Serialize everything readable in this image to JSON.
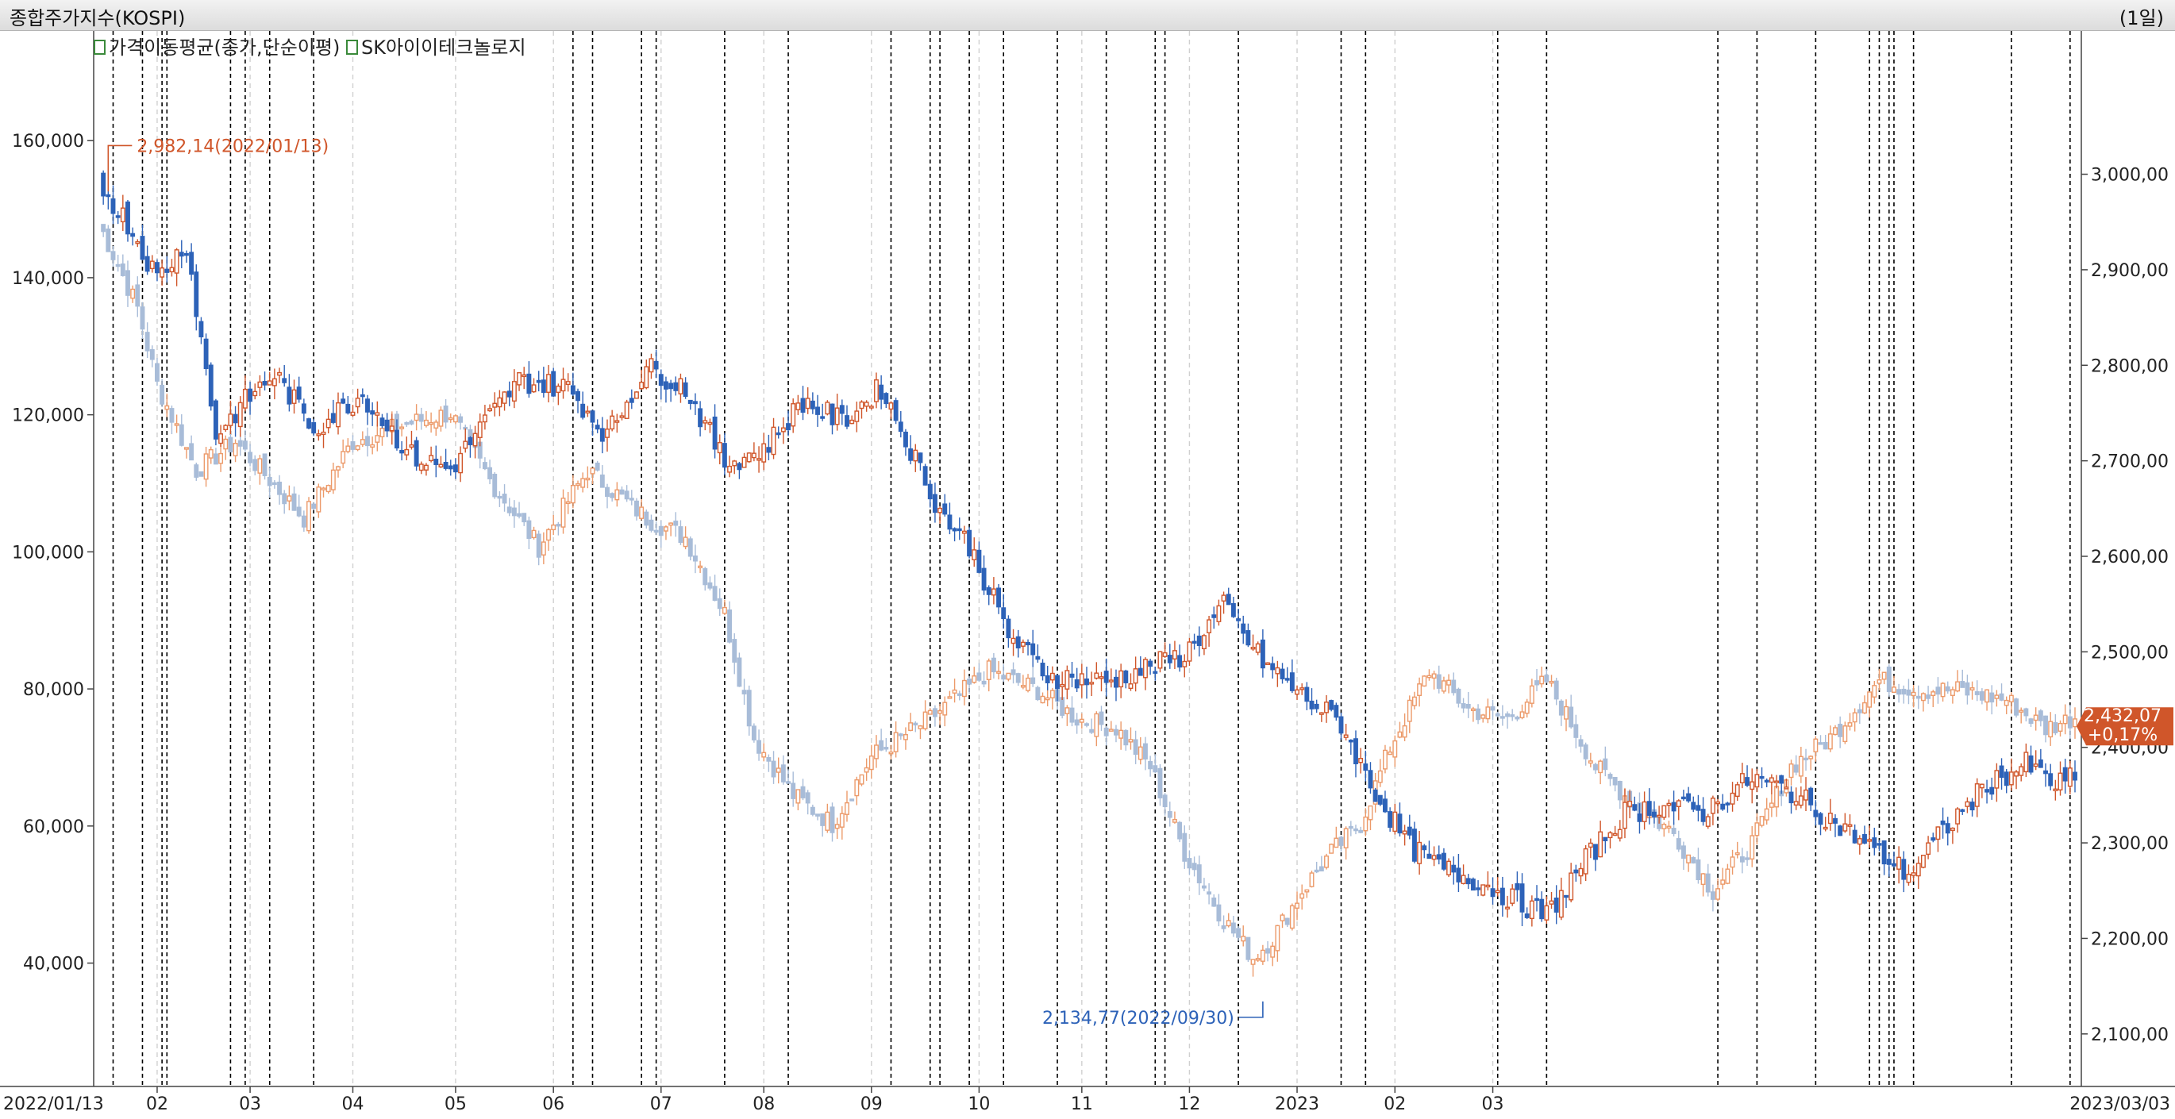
{
  "header": {
    "title": "종합주가지수(KOSPI)",
    "period": "(1일)"
  },
  "legend": {
    "series_1": "가격이동평균(종가,단순이평)",
    "series_2": "SK아이이테크놀로지"
  },
  "colors": {
    "up": "#d0562a",
    "down": "#2d62b8",
    "kospi_up": "#ec9a6a",
    "kospi_down": "#a8bcd8",
    "grid": "#d0d0d0",
    "event_line": "#000000",
    "axis_text": "#222222",
    "high_annotation": "#d0562a",
    "low_annotation": "#2d62b8",
    "last_price_bg": "#d0562a"
  },
  "chart_data": {
    "type": "candlestick",
    "x_start_label": "2022/01/13",
    "x_end_label": "2023/03/03",
    "x_tick_labels": [
      "02",
      "03",
      "04",
      "05",
      "06",
      "07",
      "08",
      "09",
      "10",
      "11",
      "12",
      "2023",
      "02",
      "03"
    ],
    "left_axis": {
      "ticks": [
        "40,000",
        "60,000",
        "80,000",
        "100,000",
        "120,000",
        "140,000",
        "160,000"
      ],
      "ylim": [
        22000,
        176000
      ]
    },
    "right_axis": {
      "ticks": [
        "2,100,00",
        "2,200,00",
        "2,300,00",
        "2,400,00",
        "2,500,00",
        "2,600,00",
        "2,700,00",
        "2,800,00",
        "2,900,00",
        "3,000,00"
      ],
      "ylim": [
        2045,
        3150
      ]
    },
    "annotations": {
      "high": "2,982,14(2022/01/13)",
      "low": "2,134,77(2022/09/30)",
      "last_price": "2,432,07",
      "last_change": "+0,17%"
    },
    "series": [
      {
        "name": "종합주가지수(KOSPI)",
        "axis": "right",
        "close_anchors": [
          [
            0,
            2950
          ],
          [
            8,
            2860
          ],
          [
            12,
            2780
          ],
          [
            20,
            2690
          ],
          [
            28,
            2720
          ],
          [
            35,
            2680
          ],
          [
            42,
            2640
          ],
          [
            52,
            2720
          ],
          [
            64,
            2740
          ],
          [
            72,
            2750
          ],
          [
            80,
            2680
          ],
          [
            90,
            2610
          ],
          [
            100,
            2690
          ],
          [
            112,
            2640
          ],
          [
            120,
            2620
          ],
          [
            128,
            2540
          ],
          [
            134,
            2410
          ],
          [
            142,
            2350
          ],
          [
            150,
            2320
          ],
          [
            158,
            2390
          ],
          [
            170,
            2430
          ],
          [
            182,
            2480
          ],
          [
            192,
            2460
          ],
          [
            200,
            2430
          ],
          [
            208,
            2420
          ],
          [
            215,
            2380
          ],
          [
            222,
            2290
          ],
          [
            230,
            2220
          ],
          [
            236,
            2180
          ],
          [
            240,
            2200
          ],
          [
            246,
            2250
          ],
          [
            252,
            2290
          ],
          [
            258,
            2320
          ],
          [
            264,
            2400
          ],
          [
            272,
            2480
          ],
          [
            280,
            2440
          ],
          [
            288,
            2430
          ],
          [
            296,
            2470
          ],
          [
            306,
            2380
          ],
          [
            314,
            2340
          ],
          [
            322,
            2310
          ],
          [
            330,
            2250
          ],
          [
            338,
            2300
          ],
          [
            346,
            2380
          ],
          [
            354,
            2410
          ],
          [
            364,
            2470
          ],
          [
            372,
            2460
          ],
          [
            380,
            2460
          ],
          [
            390,
            2450
          ],
          [
            398,
            2420
          ],
          [
            404,
            2432
          ]
        ]
      },
      {
        "name": "SK아이이테크놀로지",
        "axis": "left",
        "close_anchors": [
          [
            0,
            154000
          ],
          [
            6,
            148000
          ],
          [
            12,
            140000
          ],
          [
            18,
            145000
          ],
          [
            24,
            117000
          ],
          [
            30,
            122000
          ],
          [
            36,
            126000
          ],
          [
            44,
            118000
          ],
          [
            54,
            123000
          ],
          [
            64,
            114000
          ],
          [
            72,
            112000
          ],
          [
            78,
            118000
          ],
          [
            86,
            125000
          ],
          [
            96,
            124000
          ],
          [
            104,
            117000
          ],
          [
            112,
            127000
          ],
          [
            120,
            124000
          ],
          [
            128,
            113000
          ],
          [
            136,
            115000
          ],
          [
            144,
            122000
          ],
          [
            152,
            119000
          ],
          [
            160,
            124000
          ],
          [
            166,
            115000
          ],
          [
            172,
            106000
          ],
          [
            178,
            101000
          ],
          [
            186,
            88000
          ],
          [
            194,
            82000
          ],
          [
            206,
            81000
          ],
          [
            214,
            83000
          ],
          [
            222,
            85000
          ],
          [
            230,
            92000
          ],
          [
            238,
            84000
          ],
          [
            246,
            79000
          ],
          [
            254,
            75000
          ],
          [
            260,
            66000
          ],
          [
            268,
            57000
          ],
          [
            274,
            54000
          ],
          [
            282,
            52000
          ],
          [
            290,
            49000
          ],
          [
            296,
            47000
          ],
          [
            304,
            55000
          ],
          [
            312,
            62000
          ],
          [
            320,
            63000
          ],
          [
            328,
            62000
          ],
          [
            338,
            67000
          ],
          [
            346,
            65000
          ],
          [
            354,
            61000
          ],
          [
            362,
            57000
          ],
          [
            370,
            53000
          ],
          [
            378,
            60000
          ],
          [
            386,
            66000
          ],
          [
            394,
            69000
          ],
          [
            400,
            66000
          ],
          [
            404,
            67000
          ]
        ]
      }
    ],
    "event_markers": "vertical dashed lines"
  }
}
